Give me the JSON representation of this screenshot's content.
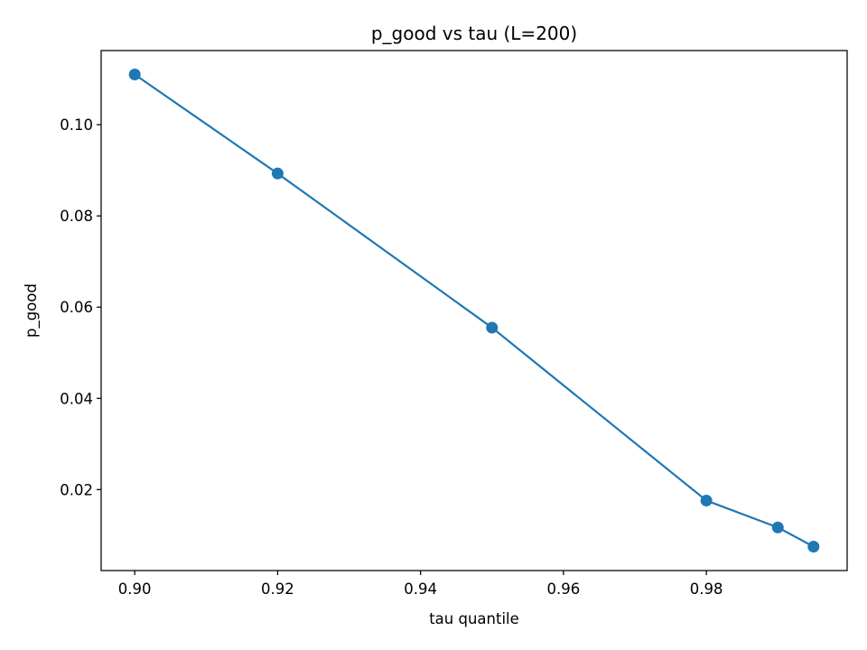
{
  "chart_data": {
    "type": "line",
    "title": "p_good vs tau (L=200)",
    "xlabel": "tau quantile",
    "ylabel": "p_good",
    "x": [
      0.9,
      0.92,
      0.95,
      0.98,
      0.99,
      0.995
    ],
    "series": [
      {
        "values": [
          0.111,
          0.0893,
          0.0555,
          0.0176,
          0.0117,
          0.0075
        ],
        "color": "#1f77b4",
        "marker": "circle"
      }
    ],
    "xlim": [
      0.8953,
      0.9997
    ],
    "ylim": [
      0.00225,
      0.11625
    ],
    "xticks": [
      0.9,
      0.92,
      0.94,
      0.96,
      0.98
    ],
    "xtick_labels": [
      "0.90",
      "0.92",
      "0.94",
      "0.96",
      "0.98"
    ],
    "yticks": [
      0.02,
      0.04,
      0.06,
      0.08,
      0.1
    ],
    "ytick_labels": [
      "0.02",
      "0.04",
      "0.06",
      "0.08",
      "0.10"
    ],
    "grid": false
  }
}
